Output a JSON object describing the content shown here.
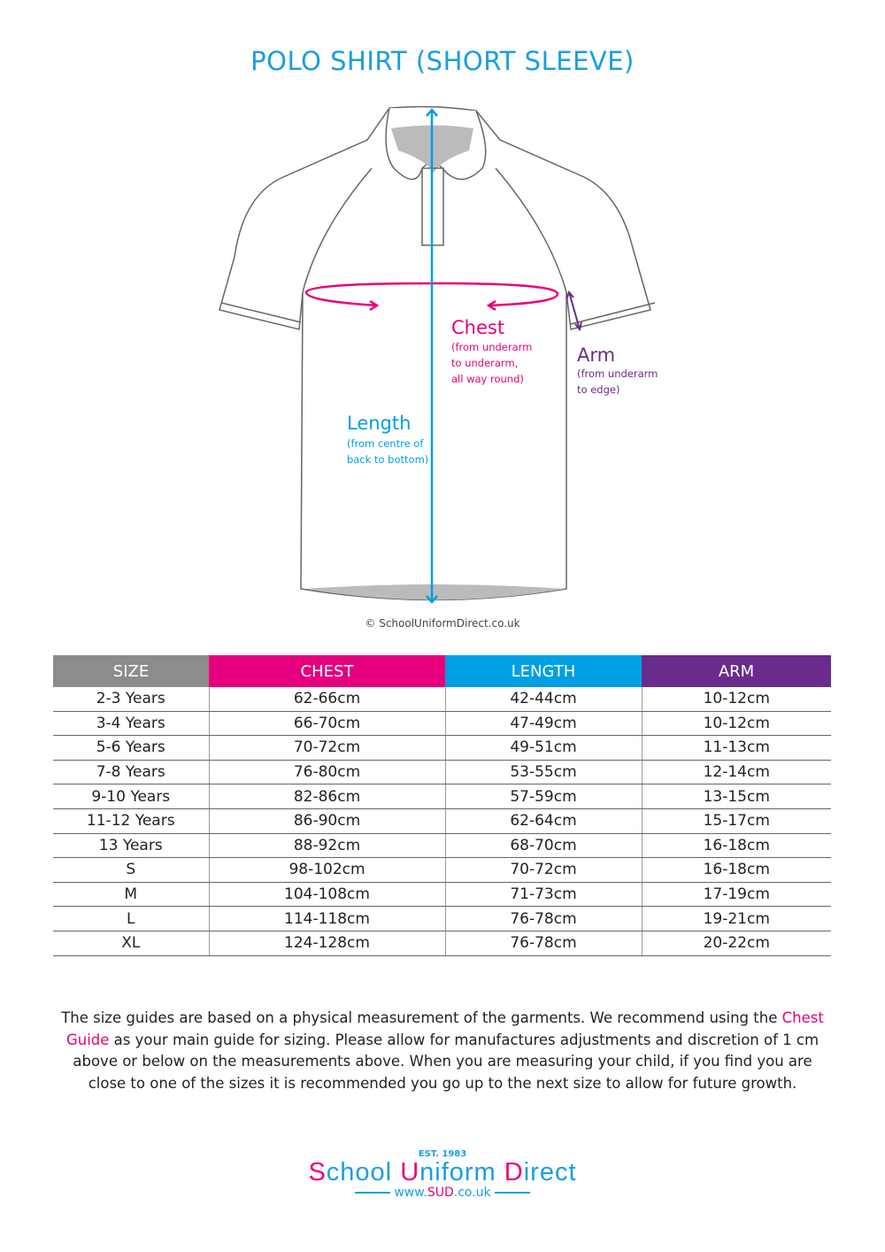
{
  "title": "POLO SHIRT (SHORT SLEEVE)",
  "diagram": {
    "chest": {
      "label": "Chest",
      "note_lines": [
        "(from underarm",
        "to underarm,",
        "all way round)"
      ]
    },
    "arm": {
      "label": "Arm",
      "note_lines": [
        "(from underarm",
        "to edge)"
      ]
    },
    "length": {
      "label": "Length",
      "note_lines": [
        "(from centre of",
        "back to bottom)"
      ]
    },
    "copyright": "© SchoolUniformDirect.co.uk"
  },
  "colors": {
    "size": "#8c8c8c",
    "chest": "#e6007e",
    "length": "#009fe3",
    "arm": "#6a2c8c"
  },
  "table": {
    "headers": [
      "SIZE",
      "CHEST",
      "LENGTH",
      "ARM"
    ],
    "rows": [
      [
        "2-3 Years",
        "62-66cm",
        "42-44cm",
        "10-12cm"
      ],
      [
        "3-4 Years",
        "66-70cm",
        "47-49cm",
        "10-12cm"
      ],
      [
        "5-6 Years",
        "70-72cm",
        "49-51cm",
        "11-13cm"
      ],
      [
        "7-8 Years",
        "76-80cm",
        "53-55cm",
        "12-14cm"
      ],
      [
        "9-10 Years",
        "82-86cm",
        "57-59cm",
        "13-15cm"
      ],
      [
        "11-12 Years",
        "86-90cm",
        "62-64cm",
        "15-17cm"
      ],
      [
        "13 Years",
        "88-92cm",
        "68-70cm",
        "16-18cm"
      ],
      [
        "S",
        "98-102cm",
        "70-72cm",
        "16-18cm"
      ],
      [
        "M",
        "104-108cm",
        "71-73cm",
        "17-19cm"
      ],
      [
        "L",
        "114-118cm",
        "76-78cm",
        "19-21cm"
      ],
      [
        "XL",
        "124-128cm",
        "76-78cm",
        "20-22cm"
      ]
    ]
  },
  "note": {
    "before": "The size guides are based on a physical measurement of the garments. We recommend using the ",
    "highlight": "Chest Guide",
    "after": " as your main guide for sizing. Please allow for manufactures adjustments and discretion of  1 cm above or below on the measurements above. When you are measuring your child, if you find you are close to one of the sizes it is recommended you go up to the next size to allow for future growth."
  },
  "logo": {
    "est": "EST. 1983",
    "words": [
      [
        "S",
        "chool"
      ],
      [
        "U",
        "niform"
      ],
      [
        "D",
        "irect"
      ]
    ],
    "url_pre": "www.",
    "url_hl": "SUD",
    "url_post": ".co.uk"
  }
}
